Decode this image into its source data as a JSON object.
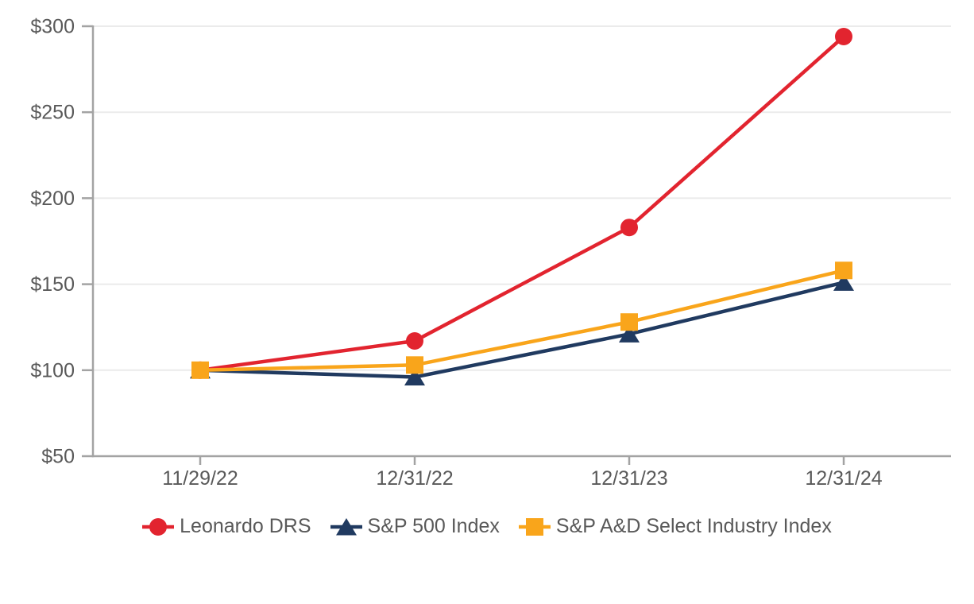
{
  "chart_data": {
    "type": "line",
    "title": "",
    "xlabel": "",
    "ylabel": "",
    "x": [
      "11/29/22",
      "12/31/22",
      "12/31/23",
      "12/31/24"
    ],
    "series": [
      {
        "name": "Leonardo DRS",
        "marker": "circle",
        "color": "#E2242F",
        "values": [
          100,
          117,
          183,
          294
        ]
      },
      {
        "name": "S&P 500 Index",
        "marker": "triangle",
        "color": "#203A60",
        "values": [
          100,
          96,
          121,
          151
        ]
      },
      {
        "name": "S&P A&D Select Industry Index",
        "marker": "square",
        "color": "#F9A51B",
        "values": [
          100,
          103,
          128,
          158
        ]
      }
    ],
    "ylim": [
      50,
      300
    ],
    "ytick_step": 50,
    "ytick_prefix": "$",
    "yticks": [
      "$50",
      "$100",
      "$150",
      "$200",
      "$250",
      "$300"
    ],
    "grid": true,
    "legend_position": "bottom",
    "axis_color": "#A3A3A3",
    "grid_color": "#EBEBEB",
    "label_color": "#595959"
  }
}
